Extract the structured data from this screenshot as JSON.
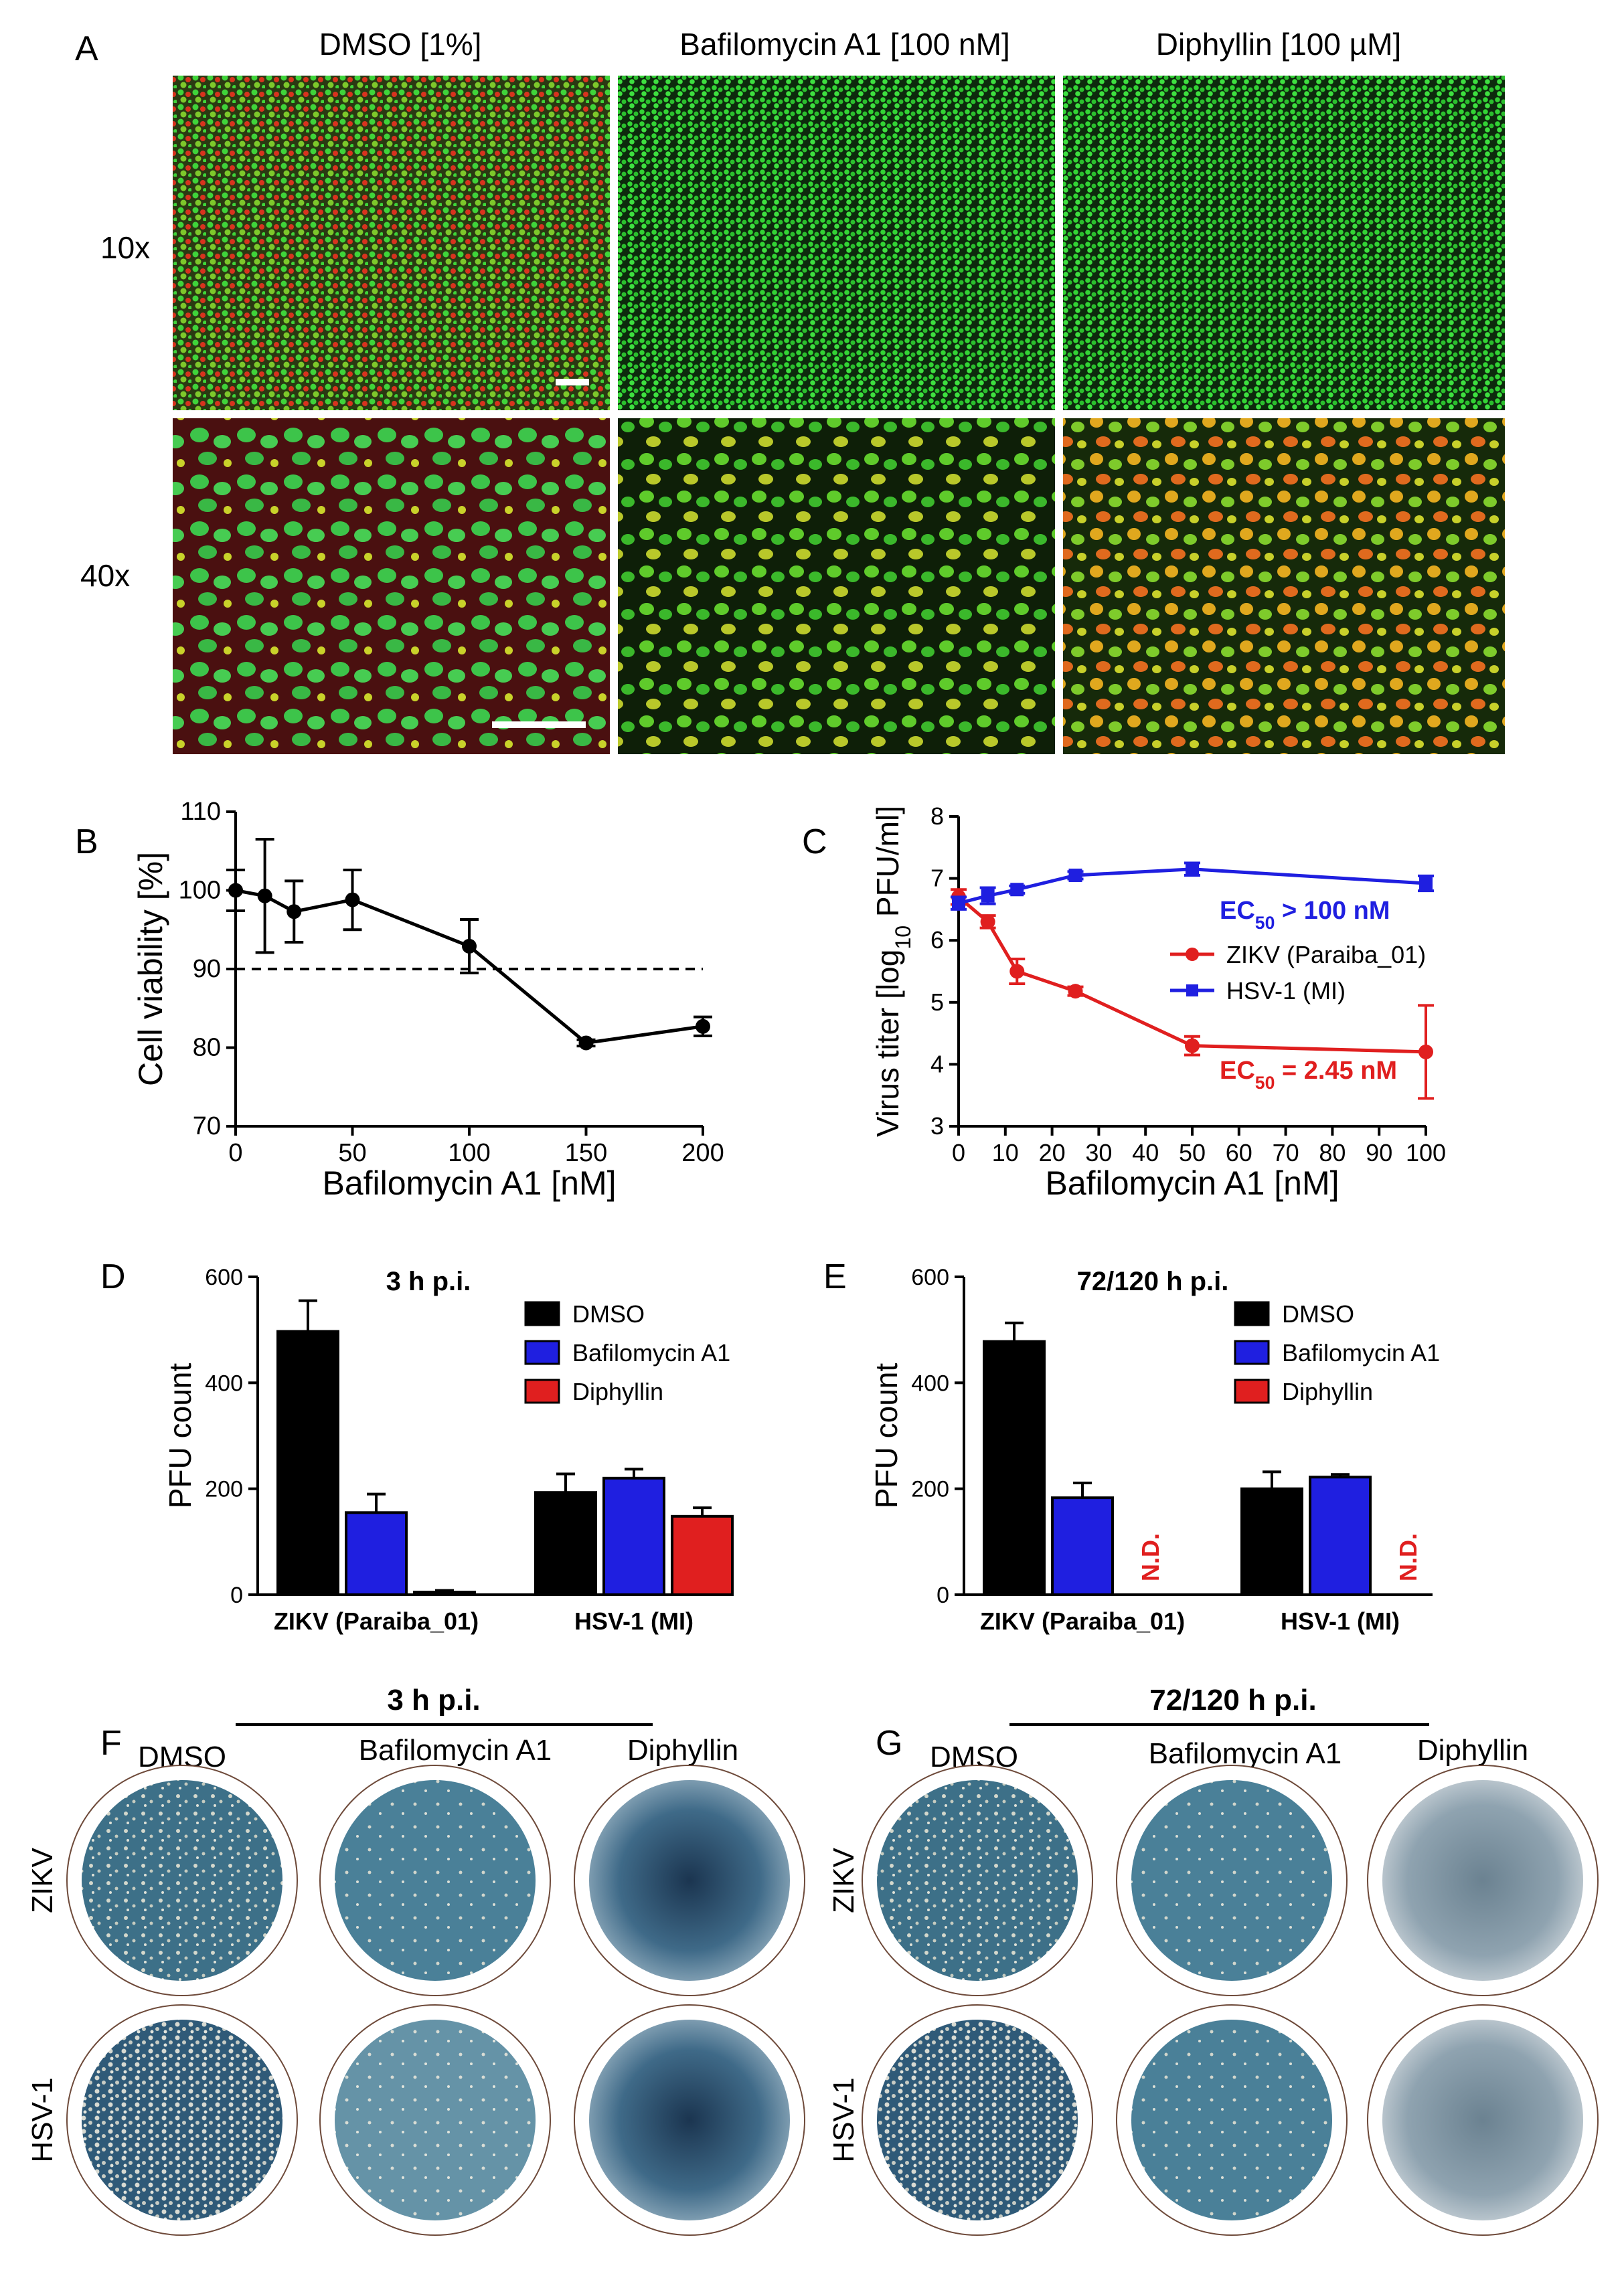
{
  "panel_letters": {
    "A": "A",
    "B": "B",
    "C": "C",
    "D": "D",
    "E": "E",
    "F": "F",
    "G": "G"
  },
  "panel_a": {
    "columns": [
      "DMSO [1%]",
      "Bafilomycin A1 [100 nM]",
      "Diphyllin [100 µM]"
    ],
    "rows": [
      "10x",
      "40x"
    ]
  },
  "panel_f": {
    "title": "3 h p.i.",
    "columns": [
      "DMSO",
      "Bafilomycin A1",
      "Diphyllin"
    ],
    "rows": [
      "ZIKV",
      "HSV-1"
    ]
  },
  "panel_g": {
    "title": "72/120 h p.i.",
    "columns": [
      "DMSO",
      "Bafilomycin A1",
      "Diphyllin"
    ],
    "rows": [
      "ZIKV",
      "HSV-1"
    ]
  },
  "colors": {
    "black": "#000000",
    "blue": "#1f1fe0",
    "red": "#e01f1f",
    "green": "#22c82a",
    "cellred": "#d8261c"
  },
  "chart_data": [
    {
      "id": "B",
      "type": "line",
      "xlabel": "Bafilomycin A1 [nM]",
      "ylabel": "Cell viability [%]",
      "xlim": [
        0,
        200
      ],
      "ylim": [
        70,
        110
      ],
      "xticks": [
        0,
        50,
        100,
        150,
        200
      ],
      "yticks": [
        70,
        80,
        90,
        100,
        110
      ],
      "reference_line": 90,
      "series": [
        {
          "name": "Cell viability",
          "x": [
            0,
            12.5,
            25,
            50,
            100,
            150,
            200
          ],
          "y": [
            100,
            99.3,
            97.3,
            98.8,
            92.9,
            80.6,
            82.7
          ],
          "err": [
            2.6,
            7.2,
            3.9,
            3.8,
            3.4,
            0.4,
            1.2
          ]
        }
      ]
    },
    {
      "id": "C",
      "type": "line",
      "xlabel": "Bafilomycin A1 [nM]",
      "ylabel_prefix": "Virus titer [log",
      "ylabel_sub": "10",
      "ylabel_suffix": " PFU/ml]",
      "xlim": [
        0,
        100
      ],
      "ylim": [
        3,
        8
      ],
      "xticks": [
        0,
        10,
        20,
        30,
        40,
        50,
        60,
        70,
        80,
        90,
        100
      ],
      "yticks": [
        3,
        4,
        5,
        6,
        7,
        8
      ],
      "legend": [
        "ZIKV (Paraiba_01)",
        "HSV-1 (MI)"
      ],
      "annotations": [
        {
          "prefix": "EC",
          "sub": "50",
          "suffix": " > 100 nM",
          "series": "HSV-1 (MI)"
        },
        {
          "prefix": "EC",
          "sub": "50",
          "suffix": " = 2.45 nM",
          "series": "ZIKV (Paraiba_01)"
        }
      ],
      "series": [
        {
          "name": "ZIKV (Paraiba_01)",
          "x": [
            0,
            6.25,
            12.5,
            25,
            50,
            100
          ],
          "y": [
            6.7,
            6.3,
            5.5,
            5.18,
            4.3,
            4.2
          ],
          "err": [
            0.12,
            0.1,
            0.2,
            0.07,
            0.15,
            0.75
          ]
        },
        {
          "name": "HSV-1 (MI)",
          "x": [
            0,
            6.25,
            12.5,
            25,
            50,
            100
          ],
          "y": [
            6.6,
            6.72,
            6.82,
            7.05,
            7.15,
            6.92
          ],
          "err": [
            0.1,
            0.13,
            0.06,
            0.06,
            0.1,
            0.12
          ]
        }
      ]
    },
    {
      "id": "D",
      "type": "bar",
      "title": "3 h p.i.",
      "ylabel": "PFU count",
      "ylim": [
        0,
        600
      ],
      "yticks": [
        0,
        200,
        400,
        600
      ],
      "categories": [
        "ZIKV (Paraiba_01)",
        "HSV-1 (MI)"
      ],
      "series": [
        {
          "name": "DMSO",
          "values": [
            497,
            193
          ],
          "err": [
            58,
            35
          ]
        },
        {
          "name": "Bafilomycin A1",
          "values": [
            155,
            220
          ],
          "err": [
            35,
            17
          ]
        },
        {
          "name": "Diphyllin",
          "values": [
            5,
            148
          ],
          "err": [
            3,
            16
          ]
        }
      ]
    },
    {
      "id": "E",
      "type": "bar",
      "title": "72/120 h p.i.",
      "ylabel": "PFU count",
      "ylim": [
        0,
        600
      ],
      "yticks": [
        0,
        200,
        400,
        600
      ],
      "categories": [
        "ZIKV (Paraiba_01)",
        "HSV-1 (MI)"
      ],
      "not_determined_label": "N.D.",
      "series": [
        {
          "name": "DMSO",
          "values": [
            478,
            200
          ],
          "err": [
            35,
            32
          ]
        },
        {
          "name": "Bafilomycin A1",
          "values": [
            183,
            222
          ],
          "err": [
            28,
            5
          ]
        },
        {
          "name": "Diphyllin",
          "values": [
            null,
            null
          ],
          "err": [
            null,
            null
          ]
        }
      ]
    }
  ]
}
